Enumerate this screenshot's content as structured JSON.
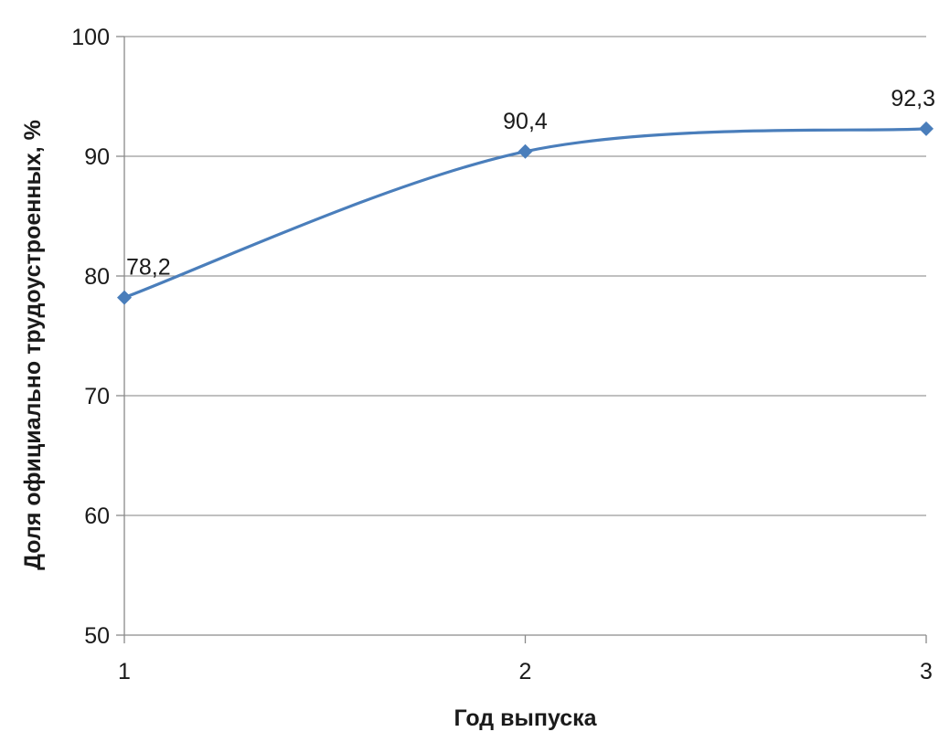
{
  "chart_data": {
    "type": "line",
    "title": "",
    "xlabel": "Год выпуска",
    "ylabel": "Доля официально трудоустроенных, %",
    "x": [
      "1",
      "2",
      "3"
    ],
    "series": [
      {
        "values": [
          78.2,
          90.4,
          92.3
        ],
        "data_labels": [
          "78,2",
          "90,4",
          "92,3"
        ],
        "color": "#4a7ebb",
        "marker": "diamond",
        "smooth": true
      }
    ],
    "ylim": [
      50,
      100
    ],
    "yticks": [
      50,
      60,
      70,
      80,
      90,
      100
    ],
    "ytick_labels": [
      "50",
      "60",
      "70",
      "80",
      "90",
      "100"
    ],
    "xtick_labels": [
      "1",
      "2",
      "3"
    ],
    "grid": "horizontal",
    "legend": "none"
  }
}
